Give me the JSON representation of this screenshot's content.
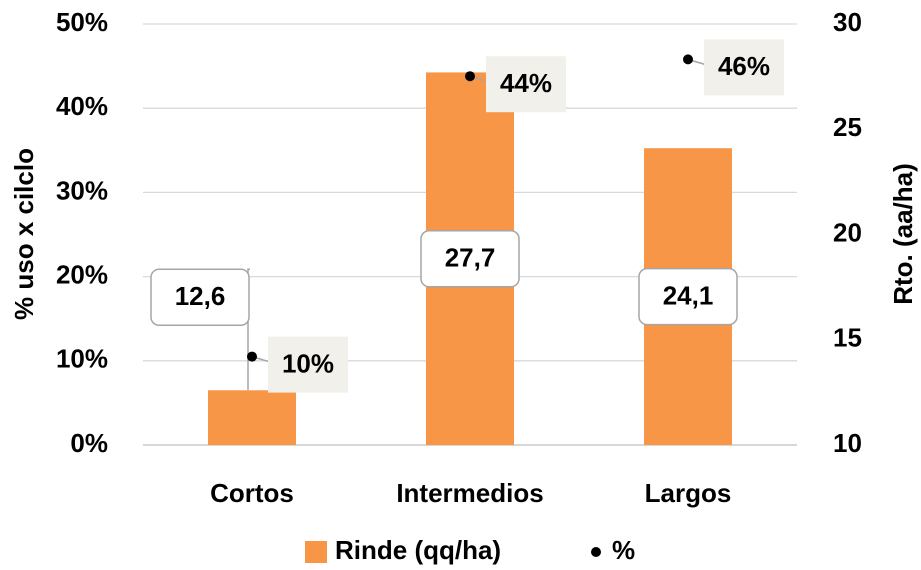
{
  "chart_data": {
    "type": "bar_dot_combo",
    "categories": [
      "Cortos",
      "Intermedios",
      "Largos"
    ],
    "series": [
      {
        "name": "Rinde (qq/ha)",
        "color": "#f79646",
        "axis": "y2",
        "values": [
          12.6,
          27.7,
          24.1
        ],
        "value_labels": [
          "12,6",
          "27,7",
          "24,1"
        ]
      },
      {
        "name": "%",
        "color": "#000000",
        "values": [
          10.5,
          43.8,
          45.8
        ],
        "value_labels": [
          "10%",
          "44%",
          "46%"
        ]
      }
    ],
    "ylabel": "% uso x cilclo",
    "y2label": "Rto. (aa/ha)",
    "ylim": [
      0,
      50
    ],
    "yticks": [
      {
        "value": 0,
        "label": "0%"
      },
      {
        "value": 10,
        "label": "10%"
      },
      {
        "value": 20,
        "label": "20%"
      },
      {
        "value": 30,
        "label": "30%"
      },
      {
        "value": 40,
        "label": "40%"
      },
      {
        "value": 50,
        "label": "50%"
      }
    ],
    "y2lim": [
      10,
      30
    ],
    "y2ticks": [
      10,
      15,
      20,
      25,
      30
    ],
    "grid": true,
    "legend": "bottom"
  }
}
